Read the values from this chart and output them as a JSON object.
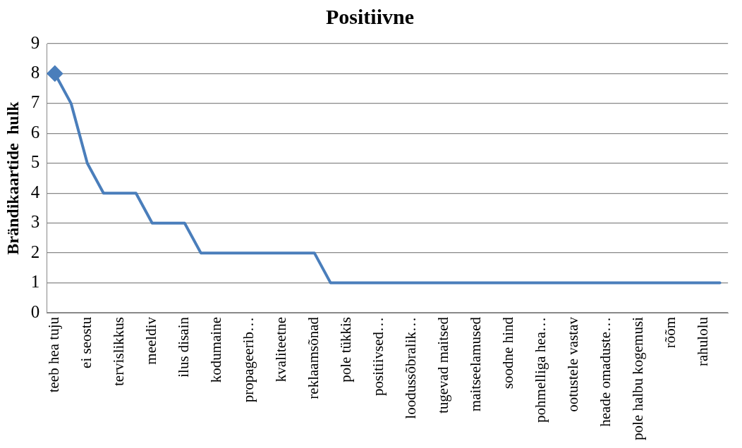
{
  "chart_data": {
    "type": "line",
    "title": "Positiivne",
    "ylabel": "Brändikaartide  hulk",
    "categories": [
      "teeb hea tuju",
      null,
      "ei seostu",
      null,
      "tervislikkus",
      null,
      "meeldiv",
      null,
      "ilus disain",
      null,
      "kodumaine",
      null,
      "propageerib…",
      null,
      "kvaliteetne",
      null,
      "reklaamsõnad",
      null,
      "pole tükkis",
      null,
      "positiivsed…",
      null,
      "loodussõbralik…",
      null,
      "tugevad maitsed",
      null,
      "maitseelamused",
      null,
      "soodne hind",
      null,
      "pohmelliga hea…",
      null,
      "ootustele vastav",
      null,
      "heade omaduste…",
      null,
      "pole halbu kogemusi",
      null,
      "rõõm",
      null,
      "rahulolu",
      null
    ],
    "series": [
      {
        "color": "#4a7ebb",
        "values": [
          8,
          7,
          5,
          4,
          4,
          4,
          3,
          3,
          3,
          2,
          2,
          2,
          2,
          2,
          2,
          2,
          2,
          1,
          1,
          1,
          1,
          1,
          1,
          1,
          1,
          1,
          1,
          1,
          1,
          1,
          1,
          1,
          1,
          1,
          1,
          1,
          1,
          1,
          1,
          1,
          1,
          1
        ]
      },
      {
        "type": "scatter",
        "color": "#4a7ebb",
        "x": [
          "teeb hea tuju"
        ],
        "values": [
          8
        ],
        "marker": "diamond"
      }
    ],
    "ylim": [
      0,
      9
    ],
    "yticks": [
      0,
      1,
      2,
      3,
      4,
      5,
      6,
      7,
      8,
      9
    ],
    "grid": "y",
    "legend": false,
    "marker": "none",
    "line_style": "solid"
  }
}
